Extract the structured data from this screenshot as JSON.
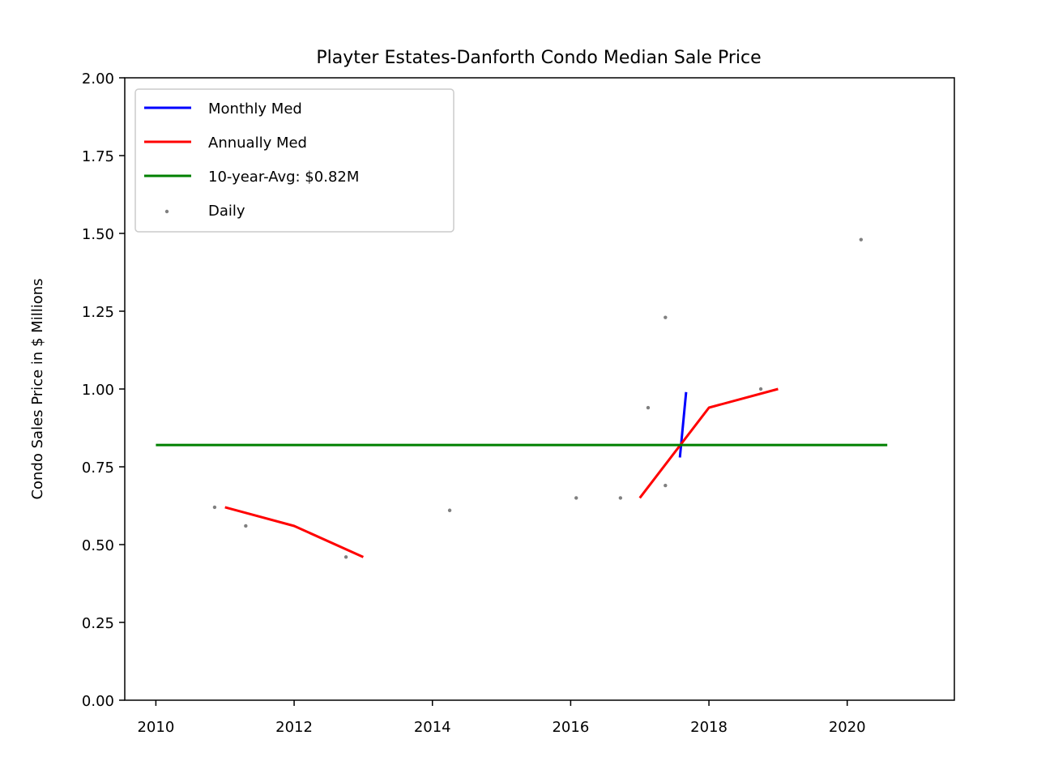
{
  "chart_data": {
    "type": "line",
    "title": "Playter Estates-Danforth Condo Median Sale Price",
    "xlabel": "",
    "ylabel": "Condo Sales Price in $ Millions",
    "xlim": [
      2009.55,
      2021.55
    ],
    "ylim": [
      0,
      2
    ],
    "xticks": [
      2010,
      2012,
      2014,
      2016,
      2018,
      2020
    ],
    "xtick_labels": [
      "2010",
      "2012",
      "2014",
      "2016",
      "2018",
      "2020"
    ],
    "yticks": [
      0,
      0.25,
      0.5,
      0.75,
      1.0,
      1.25,
      1.5,
      1.75,
      2.0
    ],
    "ytick_labels": [
      "0.00",
      "0.25",
      "0.50",
      "0.75",
      "1.00",
      "1.25",
      "1.50",
      "1.75",
      "2.00"
    ],
    "grid": false,
    "legend_position": "top-left",
    "series": [
      {
        "name": "Monthly Med",
        "kind": "line",
        "color": "#0000ff",
        "x": [
          2017.58,
          2017.67
        ],
        "y": [
          0.78,
          0.99
        ]
      },
      {
        "name": "Annually Med",
        "kind": "line",
        "color": "#ff0000",
        "x": [
          2011.0,
          2012.0,
          2013.0,
          2017.0,
          2018.0,
          2019.0
        ],
        "y": [
          0.62,
          0.56,
          0.46,
          0.65,
          0.94,
          1.0
        ],
        "segments": [
          [
            0,
            3
          ],
          [
            3,
            6
          ]
        ]
      },
      {
        "name": "10-year-Avg: $0.82M",
        "kind": "line",
        "color": "#008000",
        "x": [
          2010.0,
          2020.58
        ],
        "y": [
          0.82,
          0.82
        ]
      },
      {
        "name": "Daily",
        "kind": "scatter",
        "color": "#808080",
        "x": [
          2010.85,
          2011.3,
          2012.75,
          2014.25,
          2016.08,
          2016.72,
          2017.12,
          2017.37,
          2017.37,
          2018.75,
          2020.2
        ],
        "y": [
          0.62,
          0.56,
          0.46,
          0.61,
          0.65,
          0.65,
          0.94,
          0.69,
          1.23,
          1.0,
          1.48
        ]
      }
    ]
  }
}
